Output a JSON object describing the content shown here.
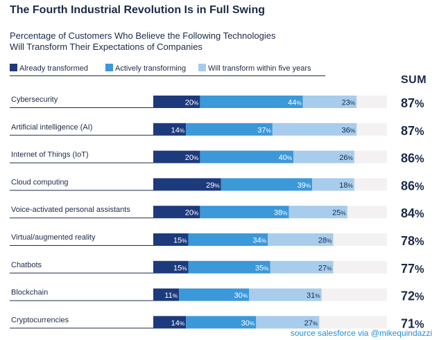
{
  "chart_data": {
    "type": "bar",
    "orientation": "horizontal",
    "stacked": true,
    "title": "The Fourth Industrial Revolution Is in Full Swing",
    "subtitle_lines": [
      "Percentage of Customers Who Believe the Following Technologies",
      "Will Transform Their Expectations of Companies"
    ],
    "categories": [
      "Cybersecurity",
      "Artificial intelligence (AI)",
      "Internet of Things (IoT)",
      "Cloud computing",
      "Voice-activated personal assistants",
      "Virtual/augmented reality",
      "Chatbots",
      "Blockchain",
      "Cryptocurrencies"
    ],
    "series": [
      {
        "name": "Already transformed",
        "color": "#1d3a7c",
        "values": [
          20,
          14,
          20,
          29,
          20,
          15,
          15,
          11,
          14
        ]
      },
      {
        "name": "Actively transforming",
        "color": "#3b98d9",
        "values": [
          44,
          37,
          40,
          39,
          38,
          34,
          35,
          30,
          30
        ]
      },
      {
        "name": "Will transform within five years",
        "color": "#a7ccec",
        "values": [
          23,
          36,
          26,
          18,
          25,
          28,
          27,
          31,
          27
        ]
      }
    ],
    "sum_label": "SUM",
    "sums": [
      87,
      87,
      86,
      86,
      84,
      78,
      77,
      72,
      71
    ],
    "value_suffix": "%",
    "xlim": [
      0,
      100
    ],
    "legend_position": "top-left",
    "background_track_color": "#f3f1f1"
  },
  "source": "source salesforce via @mikequindazzi"
}
